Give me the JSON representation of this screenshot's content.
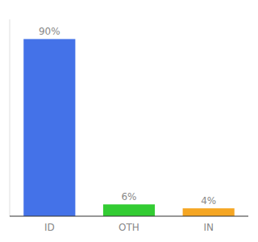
{
  "chart_data": {
    "type": "bar",
    "categories": [
      "ID",
      "OTH",
      "IN"
    ],
    "values": [
      90,
      6,
      4
    ],
    "colors": [
      "#4472e8",
      "#33cc33",
      "#f5a623"
    ],
    "data_labels": true,
    "value_labels": [
      "90%",
      "6%",
      "4%"
    ],
    "ylim": [
      0,
      100
    ],
    "grid": false,
    "tick_labels": "x"
  }
}
